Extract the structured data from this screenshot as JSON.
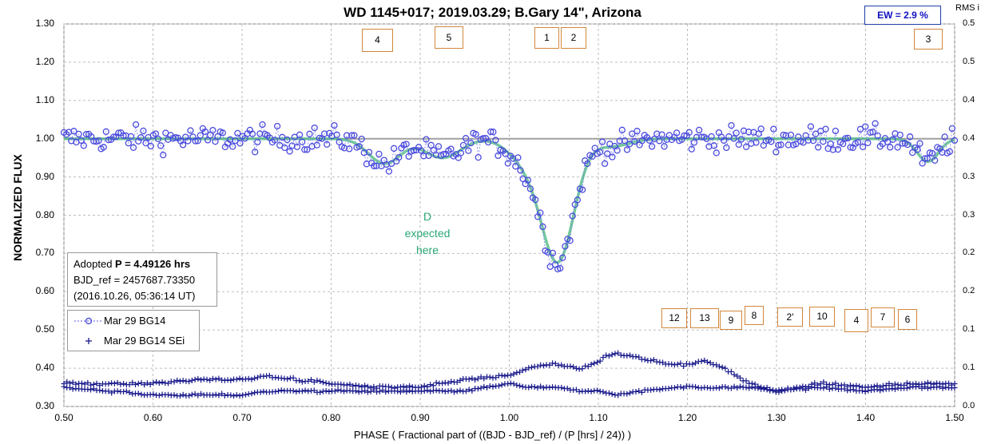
{
  "chart_data": {
    "type": "scatter",
    "title": "WD 1145+017; 2019.03.29; B.Gary 14\",  Arizona",
    "xlabel": "PHASE ( Fractional part of ((BJD - BJD_ref) / (P [hrs] / 24)) )",
    "ylabel": "NORMALIZED FLUX",
    "y2label": "RMS i",
    "xlim": [
      0.5,
      1.5
    ],
    "ylim": [
      0.3,
      1.3
    ],
    "y2lim": [
      0.0,
      0.5
    ],
    "xticks": [
      "0.50",
      "0.60",
      "0.70",
      "0.80",
      "0.90",
      "1.00",
      "1.10",
      "1.20",
      "1.30",
      "1.40",
      "1.50"
    ],
    "yticks": [
      "0.30",
      "0.40",
      "0.50",
      "0.60",
      "0.70",
      "0.80",
      "0.90",
      "1.00",
      "1.10",
      "1.20",
      "1.30"
    ],
    "y2ticks": [
      "0.0",
      "0.1",
      "0.1",
      "0.2",
      "0.2",
      "0.3",
      "0.3",
      "0.4",
      "0.4",
      "0.5",
      "0.5"
    ],
    "grid": true,
    "ew_label": "EW =  2.9 %",
    "legend": [
      {
        "name": "Mar 29 BG14",
        "marker": "circle",
        "color": "#5555dd"
      },
      {
        "name": "Mar 29 BG14 SEi",
        "marker": "plus",
        "color": "#1a1a8c"
      }
    ],
    "info": {
      "line1_prefix": "Adopted ",
      "line1_bold": "P = 4.49126 hrs",
      "line2": "BJD_ref = 2457687.73350",
      "line3": "(2016.10.26, 05:36:14 UT)"
    },
    "annotation_d": [
      "D",
      "expected",
      "here"
    ],
    "dip_labels_top": [
      "4",
      "5",
      "1",
      "2",
      "3"
    ],
    "dip_labels_bottom": [
      "12",
      "13",
      "9",
      "8",
      "2'",
      "10",
      "4",
      "7",
      "6"
    ],
    "model_fit": {
      "baseline": 1.0,
      "color": "#5cc08c",
      "dips": [
        {
          "center": 1.055,
          "depth": 0.31,
          "width": 0.018
        },
        {
          "center": 1.02,
          "depth": 0.06,
          "width": 0.02
        },
        {
          "center": 0.86,
          "depth": 0.065,
          "width": 0.018
        },
        {
          "center": 0.925,
          "depth": 0.05,
          "width": 0.02
        },
        {
          "center": 1.47,
          "depth": 0.06,
          "width": 0.012
        },
        {
          "center": 1.115,
          "depth": 0.02,
          "width": 0.02
        }
      ]
    },
    "rms_series": {
      "name": "Mar 29 BG14 SEi",
      "x": [
        0.5,
        0.55,
        0.6,
        0.65,
        0.7,
        0.73,
        0.76,
        0.8,
        0.85,
        0.9,
        0.95,
        1.0,
        1.02,
        1.05,
        1.08,
        1.1,
        1.12,
        1.18,
        1.2,
        1.22,
        1.24,
        1.27,
        1.3,
        1.35,
        1.4,
        1.45,
        1.5
      ],
      "y": [
        0.36,
        0.36,
        0.36,
        0.37,
        0.37,
        0.38,
        0.37,
        0.36,
        0.35,
        0.35,
        0.37,
        0.38,
        0.4,
        0.41,
        0.4,
        0.42,
        0.44,
        0.41,
        0.41,
        0.42,
        0.4,
        0.36,
        0.34,
        0.36,
        0.35,
        0.36,
        0.36
      ],
      "lower_y": [
        0.35,
        0.34,
        0.33,
        0.33,
        0.33,
        0.34,
        0.34,
        0.34,
        0.34,
        0.34,
        0.34,
        0.36,
        0.35,
        0.35,
        0.34,
        0.34,
        0.33,
        0.35,
        0.35,
        0.35,
        0.35,
        0.35,
        0.34,
        0.35,
        0.34,
        0.35,
        0.35
      ]
    }
  }
}
